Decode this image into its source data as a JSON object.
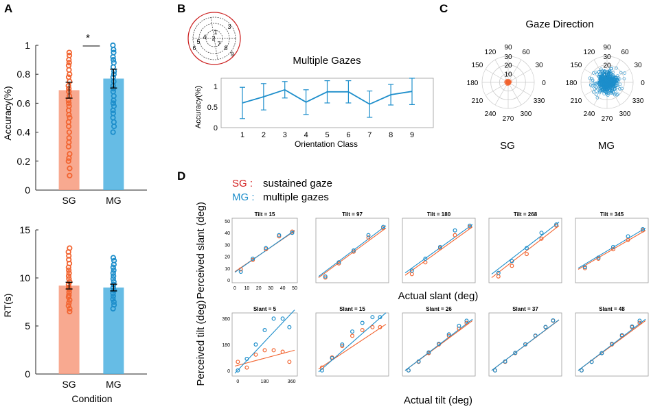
{
  "colors": {
    "sg": "#f26430",
    "sg_fill": "#f79a7c",
    "mg": "#1d8ecb",
    "mg_fill": "#4bb0e0",
    "axis": "#222222",
    "grid": "#cccccc",
    "circle": "#cc2222"
  },
  "panels": {
    "a": "A",
    "b": "B",
    "c": "C",
    "d": "D"
  },
  "chart_data": [
    {
      "id": "A-accuracy",
      "type": "bar",
      "categories": [
        "SG",
        "MG"
      ],
      "values": [
        0.69,
        0.77
      ],
      "errors": [
        0.055,
        0.065
      ],
      "ylabel": "Accuracy(%)",
      "ylim": [
        0,
        1
      ],
      "yticks": [
        "0",
        "0.2",
        "0.4",
        "0.6",
        "0.8",
        "1"
      ],
      "significance": "*",
      "points": {
        "SG": [
          0.1,
          0.15,
          0.2,
          0.22,
          0.25,
          0.3,
          0.33,
          0.36,
          0.4,
          0.44,
          0.47,
          0.5,
          0.52,
          0.55,
          0.58,
          0.6,
          0.62,
          0.65,
          0.68,
          0.7,
          0.72,
          0.75,
          0.78,
          0.8,
          0.83,
          0.86,
          0.88,
          0.9,
          0.93,
          0.95
        ],
        "MG": [
          0.4,
          0.44,
          0.47,
          0.5,
          0.53,
          0.55,
          0.58,
          0.6,
          0.62,
          0.65,
          0.68,
          0.7,
          0.72,
          0.75,
          0.78,
          0.8,
          0.82,
          0.85,
          0.88,
          0.9,
          0.92,
          0.95,
          0.97,
          1.0
        ]
      }
    },
    {
      "id": "A-rt",
      "type": "bar",
      "categories": [
        "SG",
        "MG"
      ],
      "values": [
        9.2,
        9.0
      ],
      "errors": [
        0.35,
        0.35
      ],
      "ylabel": "RT(s)",
      "xlabel": "Condition",
      "ylim": [
        0,
        15
      ],
      "yticks": [
        "0",
        "5",
        "10",
        "15"
      ],
      "points": {
        "SG": [
          6.5,
          6.8,
          7.1,
          7.4,
          7.7,
          8.0,
          8.2,
          8.5,
          8.8,
          9.0,
          9.3,
          9.6,
          9.9,
          10.2,
          10.5,
          10.8,
          11.1,
          11.5,
          11.9,
          12.3,
          12.7,
          13.1
        ],
        "MG": [
          6.8,
          7.2,
          7.5,
          7.8,
          8.1,
          8.4,
          8.7,
          9.0,
          9.3,
          9.6,
          9.9,
          10.2,
          10.5,
          10.8,
          11.1,
          11.4,
          11.8,
          12.1
        ]
      }
    },
    {
      "id": "B",
      "type": "line",
      "title": "Multiple Gazes",
      "xlabel": "Orientation Class",
      "ylabel": "Accuracy(%)",
      "x": [
        1,
        2,
        3,
        4,
        5,
        6,
        7,
        8,
        9
      ],
      "values": [
        0.6,
        0.75,
        0.92,
        0.62,
        0.87,
        0.87,
        0.57,
        0.8,
        0.88
      ],
      "errors": [
        0.38,
        0.32,
        0.2,
        0.3,
        0.27,
        0.27,
        0.32,
        0.25,
        0.32
      ],
      "ylim": [
        0,
        1.2
      ],
      "yticks": [
        "0",
        "0.5",
        "1"
      ],
      "xticks": [
        "1",
        "2",
        "3",
        "4",
        "5",
        "6",
        "7",
        "8",
        "9"
      ],
      "inset_labels": [
        "1",
        "2",
        "3",
        "4",
        "5",
        "6",
        "7",
        "8",
        "9"
      ]
    },
    {
      "id": "C",
      "type": "scatter",
      "title": "Gaze Direction",
      "subplots": [
        "SG",
        "MG"
      ],
      "angle_labels": [
        "90",
        "60",
        "30",
        "0",
        "330",
        "300",
        "270",
        "240",
        "210",
        "180",
        "150",
        "120"
      ],
      "radius_labels": [
        "10",
        "20",
        "30"
      ],
      "sg_spread": 1.5,
      "mg_spread": 9
    },
    {
      "id": "D",
      "type": "scatter",
      "legend": {
        "sg_key": "SG :",
        "sg_text": "sustained gaze",
        "mg_key": "MG :",
        "mg_text": "multiple gazes"
      },
      "row1_ylabel": "Perceived slant (deg)",
      "row1_xlabel": "Actual slant (deg)",
      "row2_ylabel": "Perceived tilt (deg)",
      "row2_xlabel": "Actual tilt (deg)",
      "row1": [
        {
          "title": "Tilt = 15",
          "x": [
            5,
            15,
            26,
            37,
            48
          ],
          "sg": [
            9,
            17,
            26,
            37,
            41
          ],
          "mg": [
            7,
            18,
            27,
            38,
            40
          ],
          "sg_line": [
            7.0,
            41.5
          ],
          "mg_line": [
            6.5,
            42.0
          ]
        },
        {
          "title": "Tilt = 97",
          "x": [
            5,
            15,
            26,
            37,
            48
          ],
          "sg": [
            2,
            14,
            24,
            36,
            44
          ],
          "mg": [
            3,
            15,
            25,
            38,
            45
          ],
          "sg_line": [
            2.0,
            44.0
          ],
          "mg_line": [
            3.0,
            46.0
          ]
        },
        {
          "title": "Tilt = 180",
          "x": [
            5,
            15,
            26,
            37,
            48
          ],
          "sg": [
            5,
            15,
            27,
            38,
            45
          ],
          "mg": [
            8,
            18,
            28,
            42,
            46
          ],
          "sg_line": [
            4.0,
            45.0
          ],
          "mg_line": [
            6.0,
            47.0
          ]
        },
        {
          "title": "Tilt = 268",
          "x": [
            5,
            15,
            26,
            37,
            48
          ],
          "sg": [
            3,
            12,
            22,
            35,
            46
          ],
          "mg": [
            6,
            16,
            27,
            40,
            47
          ],
          "sg_line": [
            2.0,
            46.0
          ],
          "mg_line": [
            5.0,
            49.0
          ]
        },
        {
          "title": "Tilt = 345",
          "x": [
            5,
            15,
            26,
            37,
            48
          ],
          "sg": [
            10,
            18,
            26,
            34,
            42
          ],
          "mg": [
            11,
            19,
            28,
            37,
            43
          ],
          "sg_line": [
            9.0,
            42.0
          ],
          "mg_line": [
            10.0,
            44.0
          ]
        }
      ],
      "row2": [
        {
          "title": "Slant = 5",
          "x": [
            0,
            60,
            120,
            180,
            240,
            300,
            345
          ],
          "sg": [
            60,
            20,
            110,
            140,
            140,
            130,
            60
          ],
          "mg": [
            0,
            80,
            180,
            280,
            360,
            360,
            300
          ],
          "sg_line": [
            30,
            140
          ],
          "mg_line": [
            -20,
            420
          ]
        },
        {
          "title": "Slant = 15",
          "x": [
            0,
            60,
            120,
            180,
            240,
            300,
            345
          ],
          "sg": [
            20,
            90,
            170,
            240,
            280,
            300,
            300
          ],
          "mg": [
            0,
            85,
            180,
            270,
            330,
            370,
            370
          ],
          "sg_line": [
            10,
            320
          ],
          "mg_line": [
            -10,
            400
          ]
        },
        {
          "title": "Slant = 26",
          "x": [
            0,
            60,
            120,
            180,
            240,
            300,
            345
          ],
          "sg": [
            0,
            60,
            120,
            180,
            240,
            290,
            330
          ],
          "mg": [
            0,
            62,
            125,
            185,
            250,
            310,
            345
          ],
          "sg_line": [
            0,
            345
          ],
          "mg_line": [
            0,
            355
          ]
        },
        {
          "title": "Slant = 37",
          "x": [
            0,
            60,
            120,
            180,
            240,
            300,
            345
          ],
          "sg": [
            0,
            60,
            120,
            180,
            240,
            300,
            345
          ],
          "mg": [
            0,
            62,
            122,
            182,
            242,
            302,
            347
          ],
          "sg_line": [
            0,
            350
          ],
          "mg_line": [
            0,
            352
          ]
        },
        {
          "title": "Slant = 48",
          "x": [
            0,
            60,
            120,
            180,
            240,
            300,
            345
          ],
          "sg": [
            0,
            60,
            120,
            180,
            240,
            300,
            330
          ],
          "mg": [
            0,
            60,
            120,
            185,
            245,
            305,
            345
          ],
          "sg_line": [
            0,
            345
          ],
          "mg_line": [
            0,
            355
          ]
        }
      ],
      "first_axes_row1": {
        "xticks": [
          "0",
          "10",
          "20",
          "30",
          "40",
          "50"
        ],
        "yticks": [
          "0",
          "10",
          "20",
          "30",
          "40",
          "50"
        ]
      },
      "first_axes_row2": {
        "xticks": [
          "0",
          "180",
          "360"
        ],
        "yticks": [
          "0",
          "180",
          "360"
        ]
      }
    }
  ]
}
